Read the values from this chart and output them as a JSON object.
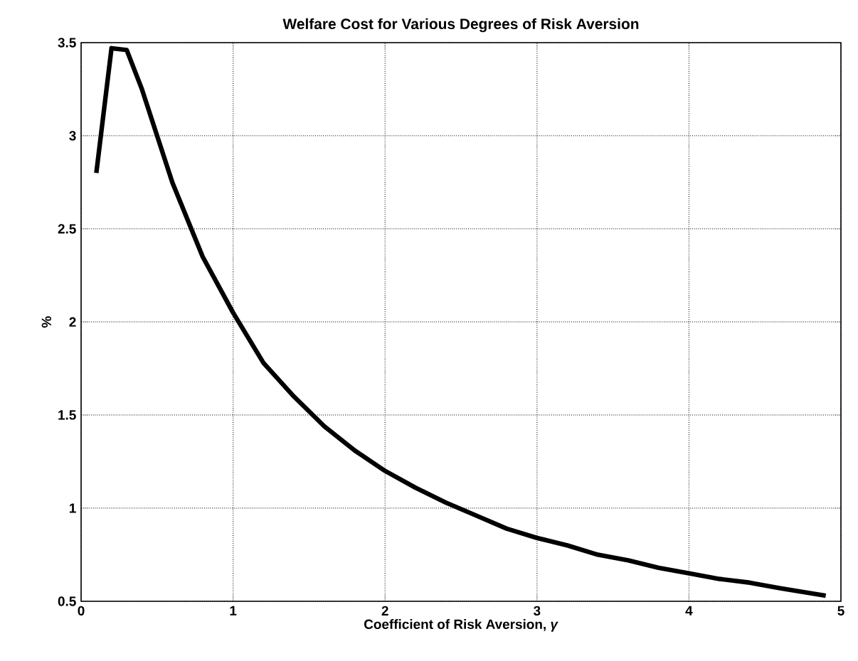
{
  "chart_data": {
    "type": "line",
    "title": "Welfare Cost  for Various Degrees of Risk Aversion",
    "xlabel": "Coefficient of Risk Aversion, *γ*",
    "ylabel": "%",
    "x": [
      0.1,
      0.2,
      0.3,
      0.4,
      0.6,
      0.8,
      1.0,
      1.2,
      1.4,
      1.6,
      1.8,
      2.0,
      2.2,
      2.4,
      2.6,
      2.8,
      3.0,
      3.2,
      3.4,
      3.6,
      3.8,
      4.0,
      4.2,
      4.4,
      4.6,
      4.9
    ],
    "series": [
      {
        "color": "#000000",
        "values": [
          2.8,
          3.47,
          3.46,
          3.25,
          2.75,
          2.35,
          2.05,
          1.78,
          1.6,
          1.44,
          1.31,
          1.2,
          1.11,
          1.03,
          0.96,
          0.89,
          0.84,
          0.8,
          0.75,
          0.72,
          0.68,
          0.65,
          0.62,
          0.6,
          0.57,
          0.53
        ]
      }
    ],
    "xlim": [
      0,
      5
    ],
    "ylim": [
      0.5,
      3.5
    ],
    "xticks": [
      0,
      1,
      2,
      3,
      4,
      5
    ],
    "yticks": [
      0.5,
      1,
      1.5,
      2,
      2.5,
      3,
      3.5
    ],
    "grid": true
  }
}
